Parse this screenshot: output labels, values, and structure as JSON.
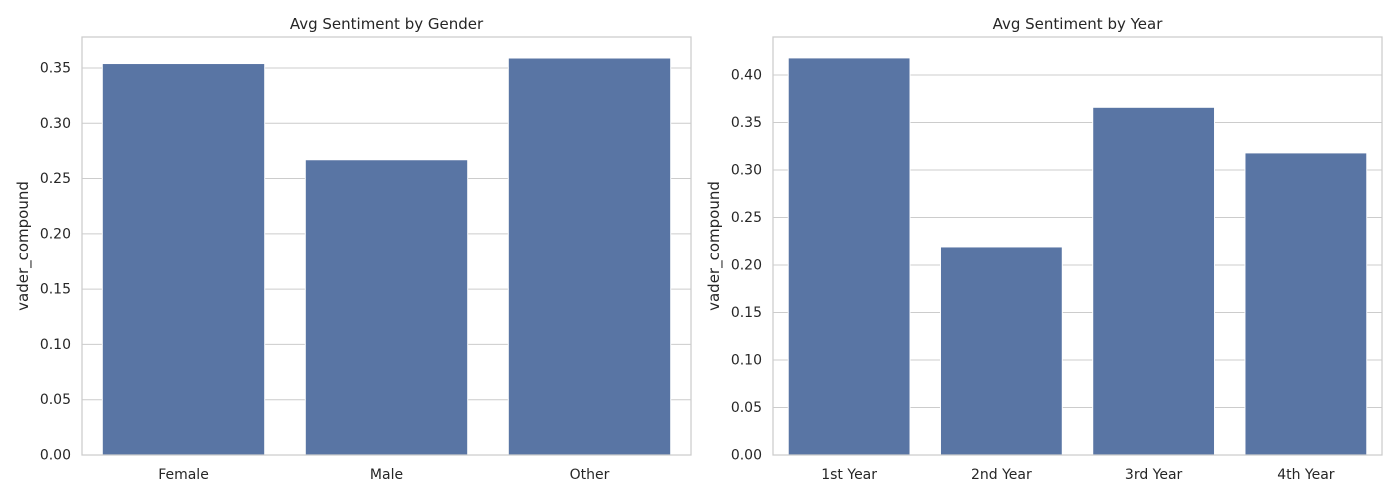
{
  "chart_data": [
    {
      "type": "bar",
      "title": "Avg Sentiment by Gender",
      "xlabel": "",
      "ylabel": "vader_compound",
      "categories": [
        "Female",
        "Male",
        "Other"
      ],
      "values": [
        0.354,
        0.267,
        0.359
      ],
      "ylim": [
        0,
        0.378
      ],
      "yticks": [
        0.0,
        0.05,
        0.1,
        0.15,
        0.2,
        0.25,
        0.3,
        0.35
      ],
      "ytick_labels": [
        "0.00",
        "0.05",
        "0.10",
        "0.15",
        "0.20",
        "0.25",
        "0.30",
        "0.35"
      ],
      "grid": "horizontal",
      "bar_color": "#5975a4"
    },
    {
      "type": "bar",
      "title": "Avg Sentiment by Year",
      "xlabel": "",
      "ylabel": "vader_compound",
      "categories": [
        "1st Year",
        "2nd Year",
        "3rd Year",
        "4th Year"
      ],
      "values": [
        0.418,
        0.219,
        0.366,
        0.318
      ],
      "ylim": [
        0,
        0.44
      ],
      "yticks": [
        0.0,
        0.05,
        0.1,
        0.15,
        0.2,
        0.25,
        0.3,
        0.35,
        0.4
      ],
      "ytick_labels": [
        "0.00",
        "0.05",
        "0.10",
        "0.15",
        "0.20",
        "0.25",
        "0.30",
        "0.35",
        "0.40"
      ],
      "grid": "horizontal",
      "bar_color": "#5975a4"
    }
  ],
  "style": {
    "grid_color": "#cccccc",
    "spine_color": "#cccccc",
    "bar_edge_color": "#ffffff",
    "text_color": "#262626"
  }
}
